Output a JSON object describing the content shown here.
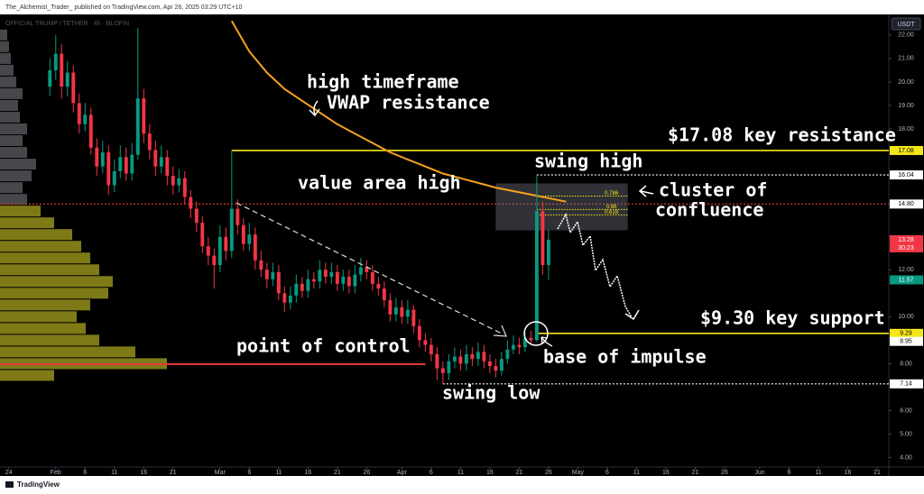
{
  "header": "The_Alchemist_Trader_ published on TradingView.com, Apr 26, 2025 03:29 UTC+10",
  "footer": "TradingView",
  "chart_data": {
    "type": "candlestick",
    "symbol": "OFFICIAL TRUMP / TETHER · 4h · BLOFIN",
    "currency": "USDT",
    "up_color": "#089981",
    "down_color": "#f23645",
    "xlim": [
      -1.5,
      150
    ],
    "ylim": [
      3.6,
      22.8
    ],
    "xticks": [
      {
        "value": 0,
        "label": "24"
      },
      {
        "value": 8,
        "label": "Feb"
      },
      {
        "value": 13,
        "label": "6"
      },
      {
        "value": 18,
        "label": "11"
      },
      {
        "value": 23,
        "label": "16"
      },
      {
        "value": 28,
        "label": "21"
      },
      {
        "value": 36,
        "label": "Mar"
      },
      {
        "value": 41,
        "label": "6"
      },
      {
        "value": 46,
        "label": "11"
      },
      {
        "value": 51,
        "label": "16"
      },
      {
        "value": 56,
        "label": "21"
      },
      {
        "value": 61,
        "label": "26"
      },
      {
        "value": 67,
        "label": "Apr"
      },
      {
        "value": 72,
        "label": "6"
      },
      {
        "value": 77,
        "label": "11"
      },
      {
        "value": 82,
        "label": "16"
      },
      {
        "value": 87,
        "label": "21"
      },
      {
        "value": 92,
        "label": "26"
      },
      {
        "value": 97,
        "label": "May"
      },
      {
        "value": 102,
        "label": "6"
      },
      {
        "value": 107,
        "label": "11"
      },
      {
        "value": 112,
        "label": "16"
      },
      {
        "value": 117,
        "label": "21"
      },
      {
        "value": 122,
        "label": "26"
      },
      {
        "value": 128,
        "label": "Jun"
      },
      {
        "value": 133,
        "label": "6"
      },
      {
        "value": 138,
        "label": "11"
      },
      {
        "value": 143,
        "label": "16"
      },
      {
        "value": 148,
        "label": "21"
      }
    ],
    "yticks": [
      {
        "value": 22,
        "label": "22.00"
      },
      {
        "value": 21,
        "label": "21.00"
      },
      {
        "value": 20,
        "label": "20.00"
      },
      {
        "value": 19,
        "label": "19.00"
      },
      {
        "value": 18,
        "label": "18.00"
      },
      {
        "value": 12,
        "label": "12.00"
      },
      {
        "value": 10,
        "label": "10.00"
      },
      {
        "value": 8,
        "label": "8.00"
      },
      {
        "value": 6,
        "label": "6.00"
      },
      {
        "value": 5,
        "label": "5.00"
      },
      {
        "value": 4,
        "label": "4.00"
      }
    ],
    "candles": {
      "x": [
        7,
        8,
        9,
        10,
        11,
        12,
        13,
        14,
        15,
        16,
        17,
        18,
        19,
        20,
        21,
        22,
        23,
        24,
        25,
        26,
        27,
        28,
        29,
        30,
        31,
        32,
        33,
        34,
        35,
        36,
        37,
        38,
        39,
        40,
        41,
        42,
        43,
        44,
        45,
        46,
        47,
        48,
        49,
        50,
        51,
        52,
        53,
        54,
        55,
        56,
        57,
        58,
        59,
        60,
        61,
        62,
        63,
        64,
        65,
        66,
        67,
        68,
        69,
        70,
        71,
        72,
        73,
        74,
        75,
        76,
        77,
        78,
        79,
        80,
        81,
        82,
        83,
        84,
        85,
        86,
        87,
        88,
        89,
        90,
        91,
        92
      ],
      "open": [
        19.8,
        20.5,
        21.2,
        19.8,
        20.4,
        19.1,
        18.2,
        18.6,
        17.2,
        16.4,
        17.0,
        15.6,
        16.2,
        16.8,
        16.1,
        16.9,
        19.3,
        17.8,
        17.1,
        16.4,
        16.8,
        16.0,
        15.6,
        15.9,
        15.1,
        14.6,
        14.0,
        13.0,
        12.6,
        12.2,
        13.4,
        12.8,
        14.6,
        13.9,
        13.1,
        13.5,
        12.4,
        12.0,
        11.6,
        11.9,
        11.0,
        10.6,
        10.9,
        11.4,
        11.1,
        11.6,
        11.5,
        12.0,
        11.7,
        11.9,
        11.4,
        11.7,
        11.3,
        11.8,
        12.1,
        11.9,
        11.4,
        11.2,
        10.7,
        10.1,
        10.4,
        10.0,
        10.3,
        9.6,
        9.0,
        8.8,
        8.4,
        7.8,
        7.6,
        8.1,
        8.3,
        8.0,
        8.4,
        8.2,
        8.5,
        8.1,
        7.9,
        7.7,
        8.2,
        8.6,
        8.8,
        8.7,
        9.1,
        9.0,
        14.5,
        12.2
      ],
      "high": [
        21.0,
        22.0,
        21.6,
        20.9,
        20.7,
        19.5,
        19.1,
        18.9,
        17.6,
        17.5,
        17.3,
        16.7,
        17.3,
        17.2,
        17.4,
        22.3,
        19.7,
        18.2,
        17.5,
        17.3,
        17.1,
        16.4,
        16.3,
        16.2,
        15.4,
        14.9,
        14.3,
        13.4,
        12.9,
        13.9,
        13.8,
        17.08,
        15.0,
        14.2,
        14.0,
        13.8,
        12.8,
        12.3,
        12.3,
        12.2,
        11.3,
        11.3,
        11.8,
        11.7,
        12.0,
        11.9,
        12.4,
        12.3,
        12.3,
        12.2,
        12.0,
        12.0,
        12.2,
        12.5,
        12.4,
        12.2,
        11.7,
        11.5,
        11.0,
        10.8,
        10.7,
        10.7,
        10.5,
        9.9,
        9.3,
        9.1,
        8.7,
        8.1,
        8.4,
        8.7,
        8.6,
        8.8,
        8.7,
        8.9,
        8.8,
        8.4,
        8.2,
        8.5,
        9.0,
        9.2,
        9.1,
        9.4,
        9.4,
        16.04,
        14.9,
        13.7
      ],
      "low": [
        19.4,
        20.1,
        19.3,
        19.4,
        18.7,
        17.8,
        17.9,
        16.9,
        16.0,
        16.1,
        15.2,
        15.3,
        15.9,
        15.8,
        15.8,
        16.7,
        17.4,
        16.7,
        16.0,
        16.1,
        15.6,
        15.2,
        15.3,
        14.8,
        14.2,
        13.6,
        12.7,
        12.2,
        11.2,
        11.9,
        12.4,
        12.5,
        13.5,
        12.8,
        12.8,
        12.0,
        11.7,
        11.2,
        11.3,
        10.7,
        10.2,
        10.3,
        10.6,
        10.8,
        10.8,
        11.2,
        11.2,
        11.4,
        11.4,
        11.1,
        11.1,
        11.0,
        11.0,
        11.5,
        11.6,
        11.1,
        10.9,
        10.4,
        9.8,
        9.8,
        9.7,
        9.7,
        9.3,
        8.7,
        8.5,
        8.1,
        7.3,
        7.14,
        7.3,
        7.8,
        7.7,
        7.7,
        7.9,
        7.9,
        7.8,
        7.6,
        7.4,
        7.5,
        8.0,
        8.4,
        8.4,
        8.5,
        8.8,
        8.95,
        11.8,
        11.57
      ],
      "close": [
        20.5,
        21.2,
        19.8,
        20.4,
        19.1,
        18.2,
        18.6,
        17.2,
        16.4,
        17.0,
        15.6,
        16.2,
        16.8,
        16.1,
        16.9,
        19.3,
        17.8,
        17.1,
        16.4,
        16.8,
        16.0,
        15.6,
        15.9,
        15.1,
        14.6,
        14.0,
        13.0,
        12.6,
        12.2,
        13.4,
        12.8,
        14.6,
        13.9,
        13.1,
        13.5,
        12.4,
        12.0,
        11.6,
        11.9,
        11.0,
        10.6,
        10.9,
        11.4,
        11.1,
        11.6,
        11.5,
        12.0,
        11.7,
        11.9,
        11.4,
        11.7,
        11.3,
        11.8,
        12.1,
        11.9,
        11.4,
        11.2,
        10.7,
        10.1,
        10.4,
        10.0,
        10.3,
        9.6,
        9.0,
        8.8,
        8.4,
        7.8,
        7.6,
        8.1,
        8.3,
        8.0,
        8.4,
        8.2,
        8.5,
        8.1,
        7.9,
        7.7,
        8.2,
        8.6,
        8.8,
        8.7,
        9.1,
        9.0,
        14.5,
        12.2,
        13.28
      ]
    },
    "vwap": {
      "color": "#f7a21b",
      "x": [
        38,
        41,
        44,
        47,
        50,
        53,
        56,
        59,
        62,
        65,
        68,
        71,
        74,
        77,
        80,
        83,
        86,
        89,
        92,
        95
      ],
      "values": [
        22.6,
        21.3,
        20.4,
        19.7,
        19.2,
        18.7,
        18.2,
        17.8,
        17.4,
        17.0,
        16.7,
        16.4,
        16.1,
        15.9,
        15.7,
        15.5,
        15.35,
        15.2,
        15.05,
        14.9
      ]
    },
    "volume_profile": {
      "value_area_color": "#a8a320",
      "color": "#5d6066",
      "prices": [
        7.5,
        8.0,
        8.5,
        9.0,
        9.5,
        10.0,
        10.5,
        11.0,
        11.5,
        12.0,
        12.5,
        13.0,
        13.5,
        14.0,
        14.5,
        15.0,
        15.5,
        16.0,
        16.5,
        17.0,
        17.5,
        18.0,
        18.5,
        19.0,
        19.5,
        20.0,
        20.5,
        21.0,
        21.5,
        22.0
      ],
      "volumes": [
        60,
        185,
        150,
        110,
        95,
        85,
        100,
        120,
        125,
        110,
        100,
        90,
        80,
        60,
        45,
        30,
        25,
        35,
        40,
        30,
        25,
        30,
        22,
        20,
        25,
        18,
        15,
        12,
        10,
        8
      ]
    },
    "levels": [
      {
        "value": 17.08,
        "color": "#f5e61a",
        "text_color": "#000000",
        "line": "solid",
        "from": 38
      },
      {
        "value": 16.04,
        "color": "#ffffff",
        "text_color": "#000000",
        "line": "dotted",
        "from": 90
      },
      {
        "value": 14.8,
        "label": "14.80",
        "color": "#e53935",
        "box_color": "#ffffff",
        "text_color": "#000000",
        "line": "dotted",
        "from": -1.5
      },
      {
        "value": 13.28,
        "color": "#f23645",
        "text_color": "#ffffff",
        "line": "none",
        "from": 92
      },
      {
        "value": 11.57,
        "color": "#089981",
        "text_color": "#ffffff",
        "line": "none",
        "from": 92
      },
      {
        "value": 9.29,
        "color": "#f5e61a",
        "text_color": "#000000",
        "line": "solid",
        "from": 90
      },
      {
        "value": 8.95,
        "color": "#ffffff",
        "text_color": "#000000",
        "line": "none",
        "from": 92
      },
      {
        "value": 7.14,
        "color": "#ffffff",
        "text_color": "#000000",
        "line": "dotted",
        "from": 74
      }
    ],
    "timer": "30:23",
    "point_of_control": {
      "value": 7.98,
      "color": "#e53935",
      "from": -1.5,
      "to": 71
    },
    "fib": {
      "color": "#f5e61a",
      "ratios": [
        0.786,
        0.66,
        0.618
      ],
      "prices": [
        15.14,
        14.57,
        14.34
      ],
      "from": 90,
      "box_x": [
        83,
        105.5
      ],
      "box_price": [
        13.68,
        15.68
      ]
    },
    "annotations": [
      "high timeframe",
      "VWAP resistance",
      "$17.08 key resistance",
      "swing high",
      "value area high",
      "cluster of",
      "confluence",
      "$9.30 key support",
      "point of control",
      "base of impulse",
      "swing low"
    ]
  }
}
